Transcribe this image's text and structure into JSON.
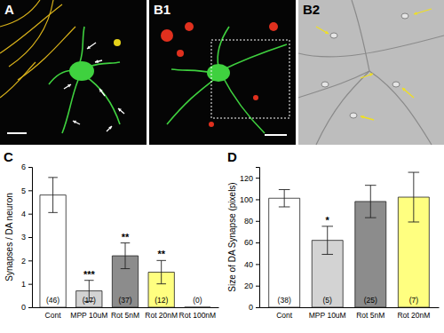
{
  "images": [
    {
      "label": "A"
    },
    {
      "label": "B1"
    },
    {
      "label": "B2"
    }
  ],
  "chart_data": [
    {
      "type": "bar",
      "title": "C",
      "categories": [
        "Cont",
        "MPP 10uM",
        "Rot 5nM",
        "Rot 20nM",
        "Rot 100nM"
      ],
      "values": [
        4.8,
        0.7,
        2.2,
        1.5,
        0
      ],
      "errors": [
        0.75,
        0.45,
        0.55,
        0.5,
        0
      ],
      "significance": [
        null,
        "***",
        "**",
        "**",
        null
      ],
      "n_labels": [
        "(46)",
        "(17)",
        "(37)",
        "(12)",
        "(0)"
      ],
      "colors": [
        "#ffffff",
        "#d3d3d3",
        "#8c8c8c",
        "#ffff80",
        "#5fd3d3"
      ],
      "ylabel": "Synapses / DA neuron",
      "ylim": [
        0,
        6
      ],
      "yticks": [
        0,
        1,
        2,
        3,
        4,
        5,
        6
      ]
    },
    {
      "type": "bar",
      "title": "D",
      "categories": [
        "Cont",
        "MPP 10uM",
        "Rot 5nM",
        "Rot 20nM"
      ],
      "values": [
        101,
        62,
        98,
        102
      ],
      "errors": [
        8,
        13,
        15,
        23
      ],
      "significance": [
        null,
        "*",
        null,
        null
      ],
      "n_labels": [
        "(38)",
        "(5)",
        "(25)",
        "(7)"
      ],
      "colors": [
        "#ffffff",
        "#d3d3d3",
        "#8c8c8c",
        "#ffff80"
      ],
      "ylabel": "Size of DA Synapse (pixels)",
      "ylim": [
        0,
        130
      ],
      "yticks": [
        0,
        20,
        40,
        60,
        80,
        100,
        120
      ]
    }
  ]
}
